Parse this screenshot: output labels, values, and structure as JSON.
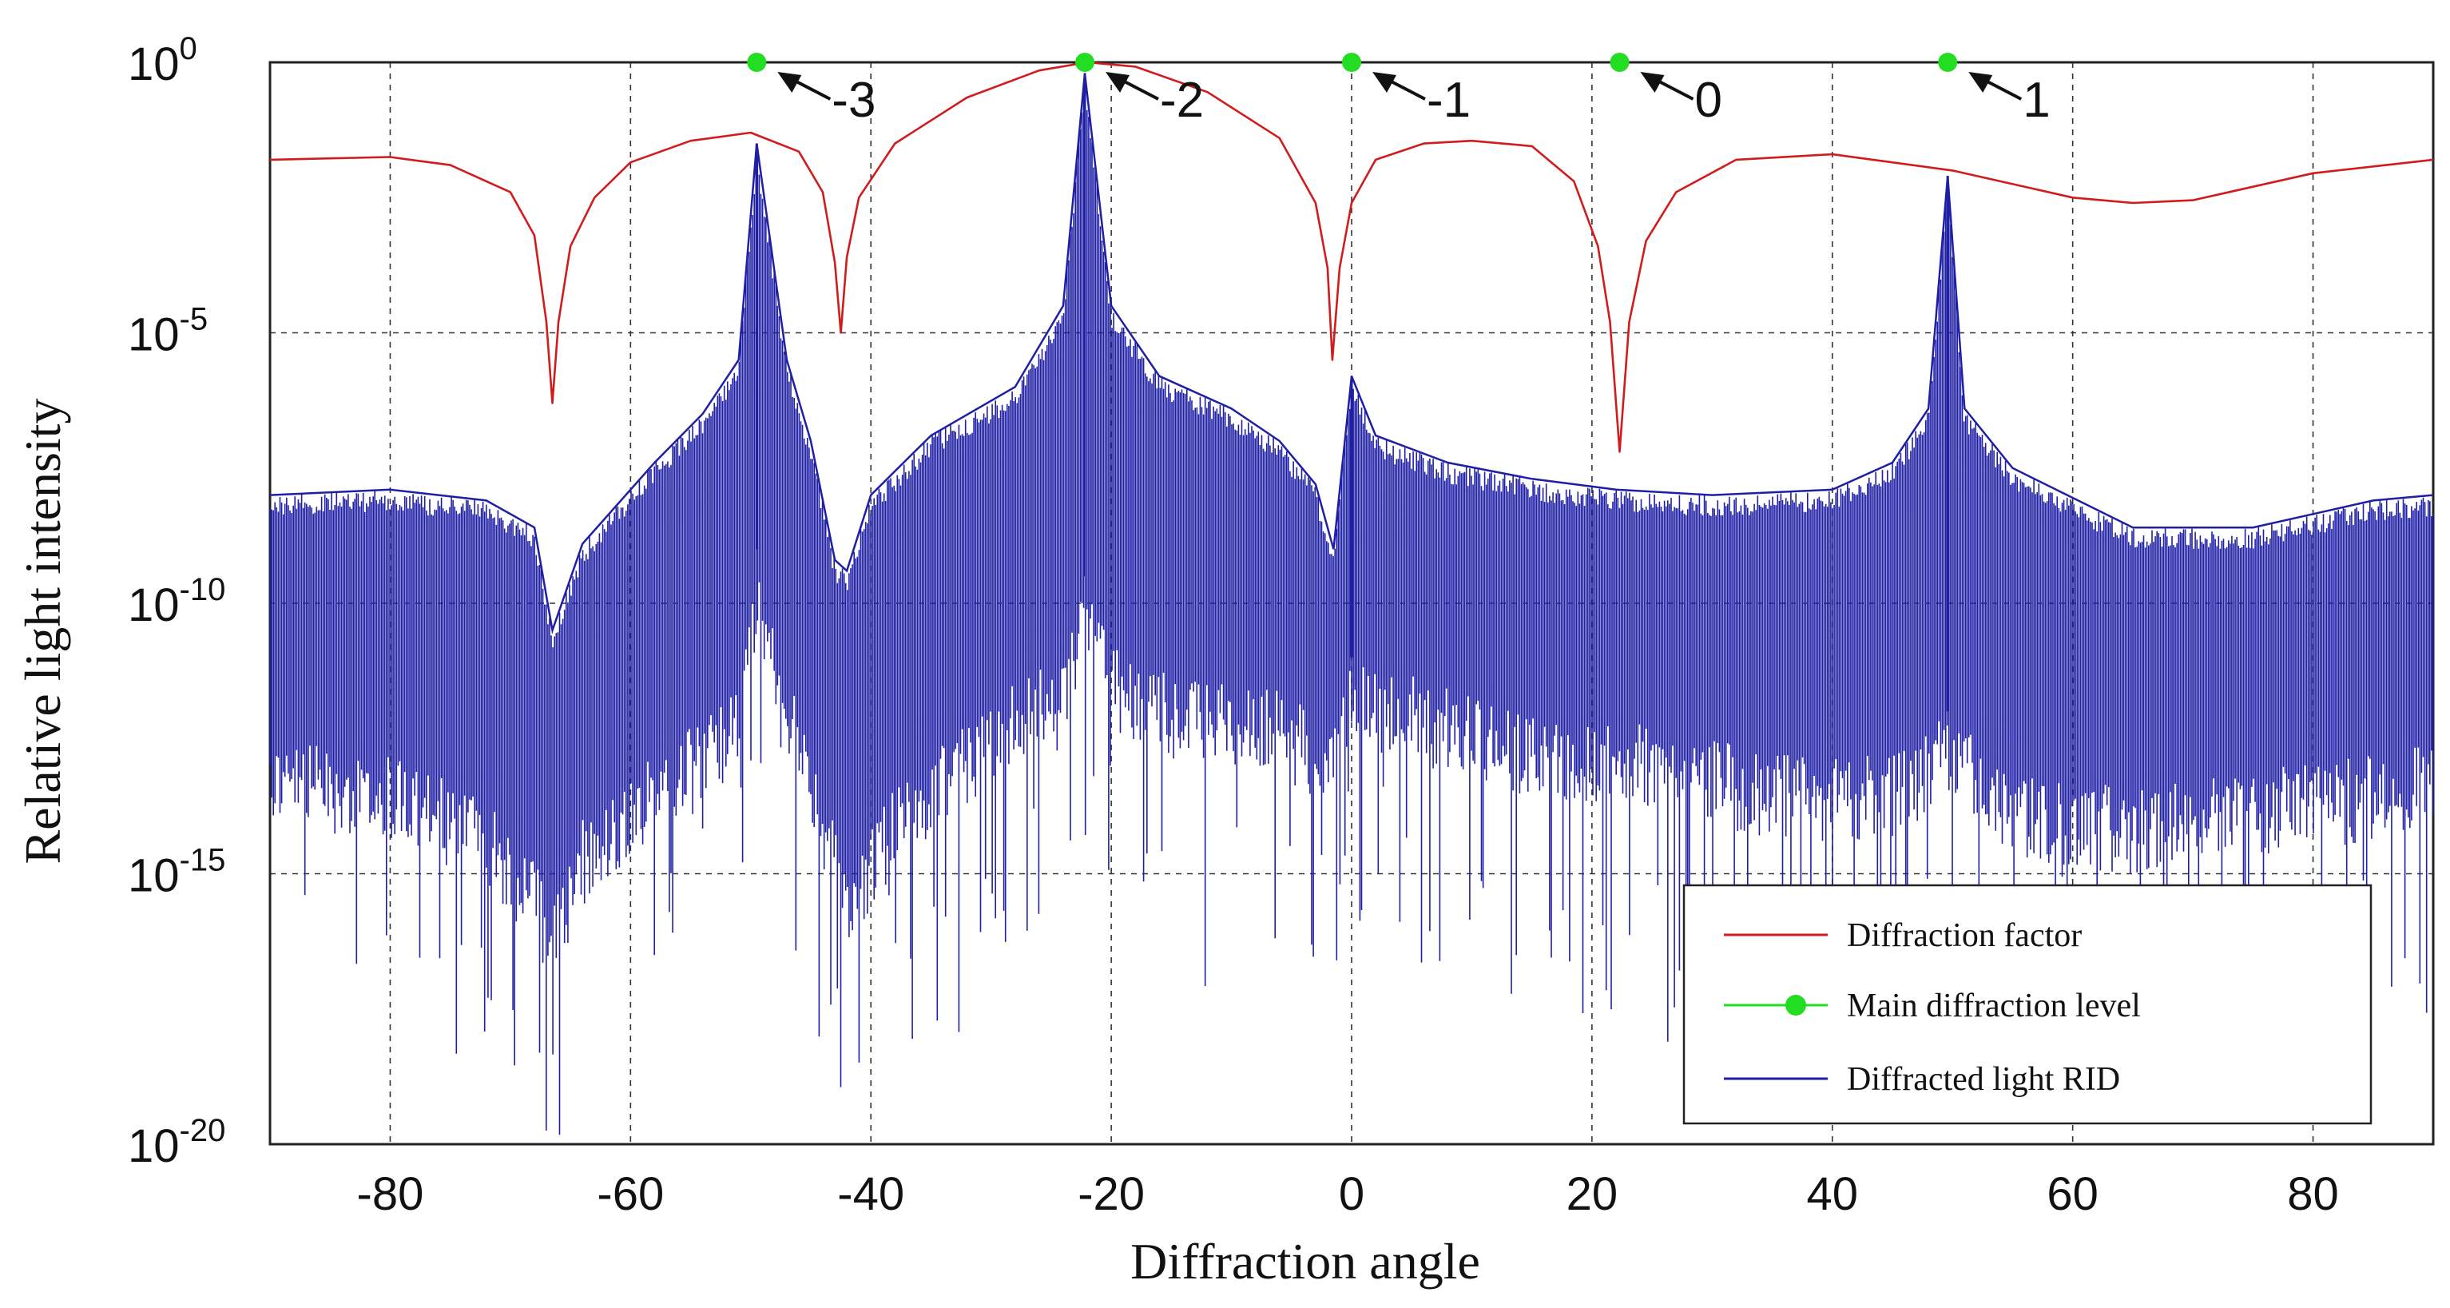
{
  "chart_data": {
    "type": "line",
    "title": "",
    "xlabel": "Diffraction angle",
    "ylabel": "Relative light intensity",
    "xlim": [
      -90,
      90
    ],
    "ylim_exp": [
      -20,
      0
    ],
    "yscale": "log",
    "grid": true,
    "x_ticks": [
      {
        "value": -80,
        "label": "-80"
      },
      {
        "value": -60,
        "label": "-60"
      },
      {
        "value": -40,
        "label": "-40"
      },
      {
        "value": -20,
        "label": "-20"
      },
      {
        "value": 0,
        "label": "0"
      },
      {
        "value": 20,
        "label": "20"
      },
      {
        "value": 40,
        "label": "40"
      },
      {
        "value": 60,
        "label": "60"
      },
      {
        "value": 80,
        "label": "80"
      }
    ],
    "y_ticks": [
      {
        "exp": 0,
        "base": "10",
        "sup": "0"
      },
      {
        "exp": -5,
        "base": "10",
        "sup": "-5"
      },
      {
        "exp": -10,
        "base": "10",
        "sup": "-10"
      },
      {
        "exp": -15,
        "base": "10",
        "sup": "-15"
      },
      {
        "exp": -20,
        "base": "10",
        "sup": "-20"
      }
    ],
    "legend_position": "bottom-right",
    "legend": [
      {
        "label": "Diffraction factor",
        "color": "#d01c1c",
        "marker": "line"
      },
      {
        "label": "Main diffraction level",
        "color": "#22dd22",
        "marker": "line-dot"
      },
      {
        "label": "Diffracted light RID",
        "color": "#1f1fa6",
        "marker": "line"
      }
    ],
    "diffraction_factor": {
      "name": "Diffraction factor",
      "color": "#d01c1c",
      "x": [
        -90,
        -80,
        -75,
        -70,
        -68,
        -67,
        -66.5,
        -66,
        -65,
        -63,
        -60,
        -55,
        -50,
        -46,
        -44,
        -43,
        -42.5,
        -42,
        -41,
        -38,
        -32,
        -26,
        -22,
        -18,
        -12,
        -6,
        -3,
        -2,
        -1.6,
        -1,
        0,
        2,
        6,
        10,
        15,
        18.5,
        20.5,
        21.5,
        22.3,
        23.1,
        24.5,
        27,
        32,
        40,
        50,
        60,
        65,
        70,
        75,
        80,
        90
      ],
      "log10": [
        -1.8,
        -1.75,
        -1.9,
        -2.4,
        -3.2,
        -4.8,
        -6.3,
        -4.8,
        -3.4,
        -2.5,
        -1.85,
        -1.45,
        -1.3,
        -1.65,
        -2.4,
        -3.7,
        -5.0,
        -3.6,
        -2.5,
        -1.5,
        -0.65,
        -0.15,
        0.0,
        -0.08,
        -0.55,
        -1.4,
        -2.6,
        -3.8,
        -5.5,
        -3.8,
        -2.6,
        -1.8,
        -1.5,
        -1.45,
        -1.55,
        -2.2,
        -3.4,
        -4.8,
        -7.2,
        -4.8,
        -3.3,
        -2.4,
        -1.8,
        -1.7,
        -2.0,
        -2.5,
        -2.6,
        -2.55,
        -2.3,
        -2.05,
        -1.8
      ]
    },
    "diffracted_rid": {
      "name": "Diffracted light RID",
      "color": "#1f1fa6",
      "peaks": [
        {
          "x": -49.5,
          "log10": -1.5
        },
        {
          "x": -22.2,
          "log10": -0.2
        },
        {
          "x": 0.0,
          "log10": -5.8
        },
        {
          "x": 49.6,
          "log10": -2.1
        }
      ],
      "upper_envelope_x": [
        -90,
        -80,
        -72,
        -68,
        -66.5,
        -64,
        -58,
        -54,
        -51,
        -49.5,
        -47,
        -45,
        -43,
        -42,
        -40,
        -35,
        -28,
        -24,
        -22.2,
        -20,
        -16,
        -10,
        -6,
        -3,
        -1.5,
        0,
        2,
        8,
        15,
        22,
        30,
        40,
        45,
        48,
        49.6,
        51,
        55,
        65,
        75,
        85,
        90
      ],
      "upper_envelope_log10": [
        -8.0,
        -7.9,
        -8.1,
        -8.6,
        -10.5,
        -8.9,
        -7.4,
        -6.5,
        -5.5,
        -1.5,
        -5.5,
        -7.0,
        -9.2,
        -9.4,
        -8.0,
        -6.9,
        -6.0,
        -4.5,
        -0.2,
        -4.5,
        -5.8,
        -6.4,
        -7.0,
        -7.8,
        -9.0,
        -5.8,
        -6.9,
        -7.4,
        -7.7,
        -7.9,
        -8.0,
        -7.9,
        -7.4,
        -6.4,
        -2.1,
        -6.4,
        -7.5,
        -8.6,
        -8.6,
        -8.1,
        -8.0
      ],
      "lower_envelope_x": [
        -90,
        -80,
        -72,
        -68,
        -66.5,
        -64,
        -58,
        -51,
        -49.5,
        -46,
        -42,
        -38,
        -30,
        -24,
        -22.2,
        -20,
        -14,
        -6,
        -1.5,
        0,
        6,
        15,
        25,
        35,
        45,
        49.6,
        55,
        65,
        75,
        85,
        90
      ],
      "lower_envelope_log10": [
        -12.5,
        -12.8,
        -13.6,
        -14.8,
        -15.4,
        -14.0,
        -12.8,
        -11.6,
        -9.0,
        -12.0,
        -14.8,
        -13.4,
        -11.8,
        -10.8,
        -9.5,
        -10.8,
        -11.4,
        -11.6,
        -12.2,
        -11.0,
        -11.4,
        -12.0,
        -12.2,
        -12.8,
        -12.8,
        -12.0,
        -13.2,
        -13.4,
        -13.1,
        -12.8,
        -12.6
      ]
    },
    "main_diffraction_levels": {
      "name": "Main diffraction level",
      "color": "#22dd22",
      "points": [
        {
          "x": -49.5,
          "log10": 0,
          "label": "-3"
        },
        {
          "x": -22.2,
          "log10": 0,
          "label": "-2"
        },
        {
          "x": 0.0,
          "log10": 0,
          "label": "-1"
        },
        {
          "x": 22.3,
          "log10": 0,
          "label": "0"
        },
        {
          "x": 49.6,
          "log10": 0,
          "label": "1"
        }
      ]
    }
  }
}
